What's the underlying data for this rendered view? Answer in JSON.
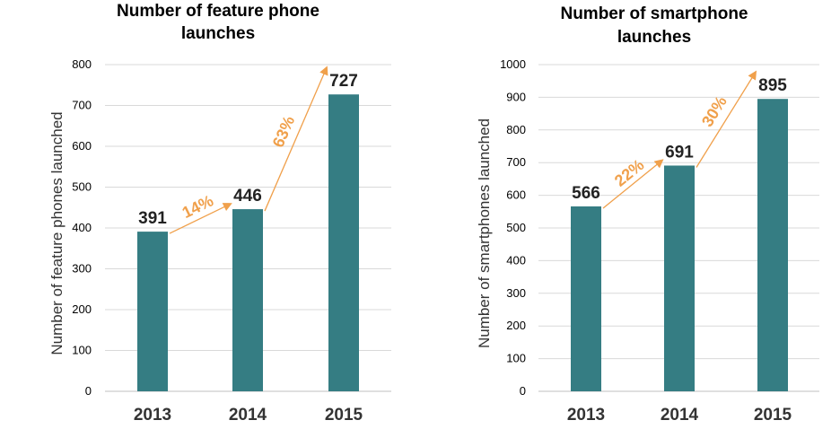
{
  "chart_data": [
    {
      "type": "bar",
      "title": [
        "Number of feature phone",
        "launches"
      ],
      "ylabel": "Number of feature phones launched",
      "xlabel": "",
      "categories": [
        "2013",
        "2014",
        "2015"
      ],
      "values": [
        391,
        446,
        727
      ],
      "value_labels": [
        "391",
        "446",
        "727"
      ],
      "ylim": [
        0,
        800
      ],
      "yticks": [
        0,
        100,
        200,
        300,
        400,
        500,
        600,
        700,
        800
      ],
      "grid": true,
      "growth": [
        {
          "from": "2013",
          "to": "2014",
          "label": "14%"
        },
        {
          "from": "2014",
          "to": "2015",
          "label": "63%"
        }
      ]
    },
    {
      "type": "bar",
      "title": [
        "Number of smartphone",
        "launches"
      ],
      "ylabel": "Number of smartphones launched",
      "xlabel": "",
      "categories": [
        "2013",
        "2014",
        "2015"
      ],
      "values": [
        566,
        691,
        895
      ],
      "value_labels": [
        "566",
        "691",
        "895"
      ],
      "ylim": [
        0,
        1000
      ],
      "yticks": [
        0,
        100,
        200,
        300,
        400,
        500,
        600,
        700,
        800,
        900,
        1000
      ],
      "grid": true,
      "growth": [
        {
          "from": "2013",
          "to": "2014",
          "label": "22%"
        },
        {
          "from": "2014",
          "to": "2015",
          "label": "30%"
        }
      ]
    }
  ],
  "colors": {
    "bar": "#357d83",
    "arrow": "#f0a04b",
    "grid": "#d9d9d9",
    "axis": "#bfbfbf"
  }
}
